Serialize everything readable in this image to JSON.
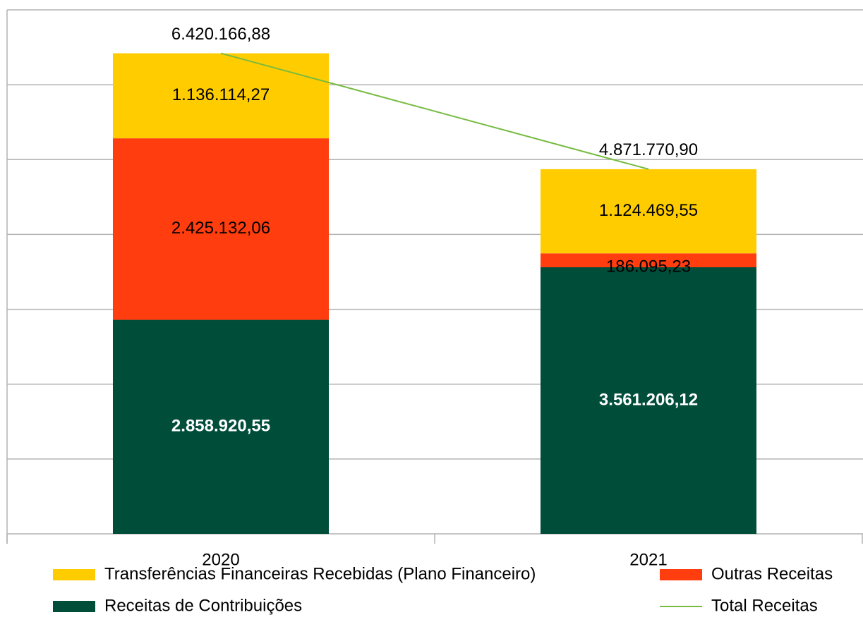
{
  "chart_data": {
    "type": "stacked-bar-line",
    "categories": [
      "2020",
      "2021"
    ],
    "series": [
      {
        "name": "Receitas de Contribuições",
        "color": "#004d3a",
        "values": [
          2858920.55,
          3561206.12
        ],
        "value_labels": [
          "2.858.920,55",
          "3.561.206,12"
        ]
      },
      {
        "name": "Outras Receitas",
        "color": "#ff3d0f",
        "values": [
          2425132.06,
          186095.23
        ],
        "value_labels": [
          "2.425.132,06",
          "186.095,23"
        ]
      },
      {
        "name": "Transferências Financeiras Recebidas (Plano Financeiro)",
        "color": "#ffcc00",
        "values": [
          1136114.27,
          1124469.55
        ],
        "value_labels": [
          "1.136.114,27",
          "1.124.469,55"
        ]
      },
      {
        "name": "Total Receitas",
        "color": "#77bb41",
        "type": "line",
        "values": [
          6420166.88,
          4871770.9
        ],
        "value_labels": [
          "6.420.166,88",
          "4.871.770,90"
        ]
      }
    ],
    "ylim": [
      0,
      7000000
    ],
    "yticks": [
      0,
      1000000,
      2000000,
      3000000,
      4000000,
      5000000,
      6000000,
      7000000
    ],
    "grid": true
  }
}
